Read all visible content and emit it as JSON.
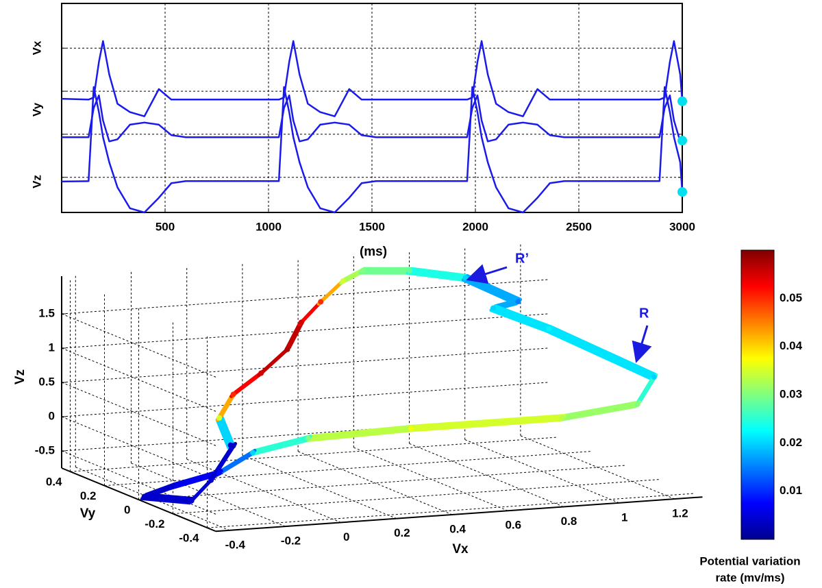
{
  "chart_data": [
    {
      "type": "line",
      "x": [
        0,
        130,
        155,
        180,
        200,
        230,
        270,
        330,
        400,
        470,
        530,
        600,
        1050,
        1075,
        1100,
        1120,
        1150,
        1190,
        1250,
        1320,
        1390,
        1450,
        1520,
        1960,
        1985,
        2010,
        2030,
        2060,
        2100,
        2160,
        2230,
        2300,
        2360,
        2430,
        2890,
        2915,
        2940,
        2960,
        2990,
        3000
      ],
      "series": [
        {
          "name": "Vx",
          "color": "#1a1aeb",
          "values": [
            2.72,
            2.7,
            2.75,
            3.6,
            4.1,
            3.3,
            2.6,
            2.4,
            2.3,
            2.95,
            2.7,
            2.7,
            2.7,
            2.75,
            3.6,
            4.1,
            3.3,
            2.6,
            2.4,
            2.3,
            2.95,
            2.7,
            2.7,
            2.7,
            2.75,
            3.6,
            4.1,
            3.3,
            2.6,
            2.4,
            2.3,
            2.95,
            2.7,
            2.7,
            2.7,
            2.75,
            3.6,
            4.1,
            3.3,
            2.66
          ]
        },
        {
          "name": "Vy",
          "color": "#1a1aeb",
          "values": [
            1.8,
            1.8,
            2.5,
            2.8,
            2.2,
            1.7,
            1.75,
            2.1,
            2.15,
            2.1,
            1.85,
            1.8,
            1.8,
            2.5,
            2.8,
            2.2,
            1.7,
            1.75,
            2.1,
            2.15,
            2.1,
            1.85,
            1.8,
            1.8,
            2.5,
            2.8,
            2.2,
            1.7,
            1.75,
            2.1,
            2.15,
            2.1,
            1.85,
            1.8,
            1.8,
            2.5,
            2.8,
            2.2,
            1.7,
            1.72
          ]
        },
        {
          "name": "Vz",
          "color": "#1a1aeb",
          "values": [
            0.74,
            0.75,
            3.0,
            2.4,
            1.8,
            1.2,
            0.6,
            0.1,
            0.0,
            0.35,
            0.7,
            0.75,
            0.75,
            3.0,
            2.4,
            1.8,
            1.2,
            0.6,
            0.1,
            0.0,
            0.35,
            0.7,
            0.75,
            0.75,
            3.0,
            2.4,
            1.8,
            1.2,
            0.6,
            0.1,
            0.0,
            0.35,
            0.7,
            0.75,
            0.75,
            3.0,
            2.4,
            1.8,
            1.2,
            0.49
          ]
        }
      ],
      "xlim": [
        0,
        3000
      ],
      "xticks": [
        500,
        1000,
        1500,
        2000,
        2500,
        3000
      ],
      "ylim": [
        0,
        5
      ],
      "ygrid": [
        0.84,
        1.87,
        2.9,
        3.93
      ],
      "x_label": "(ms)",
      "grid": true,
      "end_marker_color": "#00e0ee"
    },
    {
      "type": "line3d",
      "x": [
        -0.12,
        -0.16,
        -0.11,
        -0.01,
        0.3,
        0.35,
        0.42,
        0.5,
        0.57,
        0.74,
        0.94,
        1.13,
        1.04,
        1.24,
        1.28,
        1.22,
        0.95,
        0.53,
        0.16,
        -0.04,
        -0.16,
        -0.33,
        -0.43,
        -0.26,
        -0.19,
        -0.11
      ],
      "y": [
        0,
        0,
        0,
        0,
        0.35,
        0.35,
        0.35,
        0.35,
        0.35,
        0.35,
        0.35,
        0.35,
        0.35,
        0.35,
        -0.2,
        -0.2,
        -0.2,
        0,
        0,
        0,
        0,
        0,
        0,
        0,
        0,
        0
      ],
      "z": [
        -0.05,
        0.36,
        0.69,
        0.97,
        0.87,
        1.25,
        1.53,
        1.81,
        1.94,
        1.89,
        1.73,
        1.33,
        1.26,
        0.9,
        0.75,
        0.37,
        0.25,
        0.01,
        -0.03,
        -0.18,
        -0.44,
        -0.59,
        -0.71,
        -0.82,
        -0.54,
        -0.06
      ],
      "color_values": [
        0.005,
        0.035,
        0.05,
        0.055,
        0.057,
        0.055,
        0.05,
        0.035,
        0.03,
        0.028,
        0.02,
        0.015,
        0.02,
        0.022,
        0.02,
        0.03,
        0.033,
        0.037,
        0.03,
        0.02,
        0.008,
        0.005,
        0.004,
        0.005,
        0.005,
        0.004
      ],
      "xlim": [
        -0.45,
        1.3
      ],
      "xticks": [
        -0.4,
        -0.2,
        0,
        0.2,
        0.4,
        0.6,
        0.8,
        1,
        1.2
      ],
      "ylim": [
        -0.45,
        0.45
      ],
      "yticks": [
        -0.4,
        -0.2,
        0,
        0.2,
        0.4
      ],
      "zlim": [
        -0.75,
        2.05
      ],
      "zticks": [
        -0.5,
        0,
        0.5,
        1,
        1.5
      ],
      "x_label": "Vx",
      "y_label": "Vy",
      "z_label": "Vz",
      "grid": true,
      "colormap": "jet",
      "clim": [
        0,
        0.06
      ],
      "cticks": [
        0.01,
        0.02,
        0.03,
        0.04,
        0.05
      ],
      "colorbar_label": [
        "Potential variation",
        "rate (mv/ms)"
      ],
      "annotations": [
        "R’",
        "R"
      ]
    }
  ]
}
